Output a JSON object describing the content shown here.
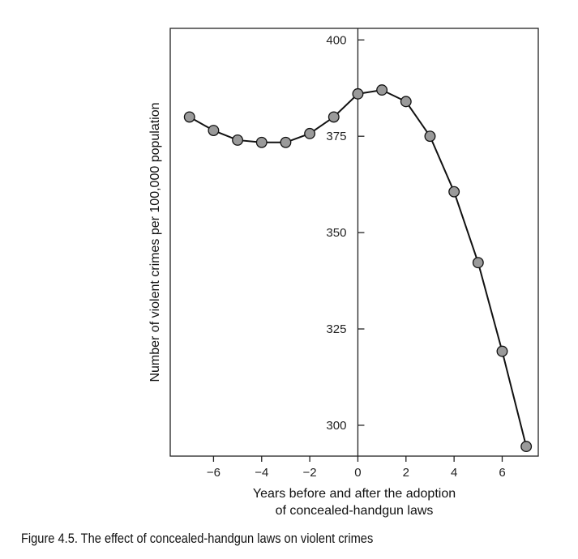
{
  "chart_data": {
    "type": "line",
    "title": "",
    "xlabel": "Years before and after the adoption",
    "xlabel_line2": "of concealed-handgun laws",
    "ylabel": "Number of violent crimes per 100,000 population",
    "xlim": [
      -7.8,
      7.5
    ],
    "ylim": [
      292,
      403
    ],
    "x_ticks": [
      -6,
      -4,
      -2,
      0,
      2,
      4,
      6
    ],
    "x_tick_labels": [
      "−6",
      "−4",
      "−2",
      "0",
      "2",
      "4",
      "6"
    ],
    "y_ticks": [
      300,
      325,
      350,
      375,
      400
    ],
    "y_tick_labels": [
      "300",
      "325",
      "350",
      "375",
      "400"
    ],
    "grid": false,
    "marker": "circle",
    "marker_color": "#9a9a9a",
    "line_color": "#111111",
    "series": [
      {
        "x": [
          -7,
          -6,
          -5,
          -4,
          -3,
          -2,
          -1,
          0,
          1,
          2,
          3,
          4,
          5,
          6,
          7
        ],
        "y": [
          380,
          376.5,
          374,
          373.4,
          373.4,
          375.7,
          380,
          386,
          387,
          384,
          375,
          360.6,
          342.2,
          319.2,
          294.5
        ]
      }
    ]
  },
  "caption": "Figure 4.5. The effect of concealed-handgun laws on violent crimes"
}
